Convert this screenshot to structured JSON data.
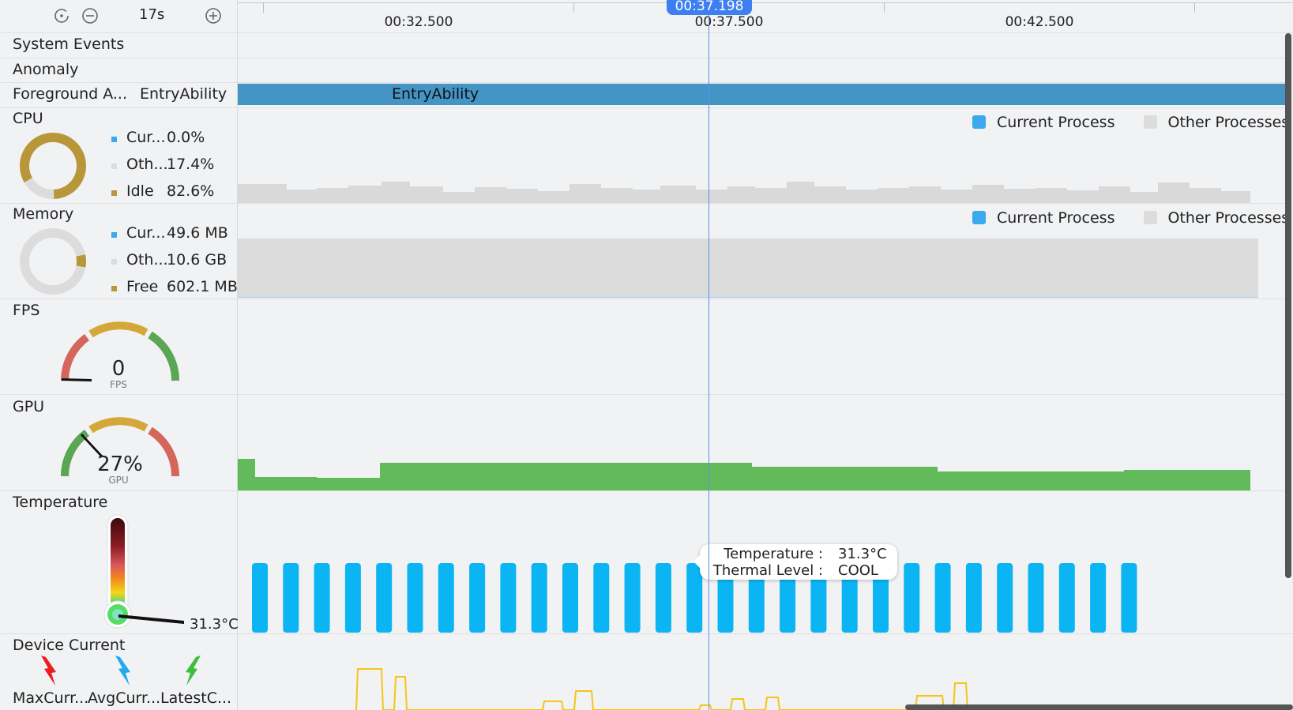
{
  "toolbar": {
    "reset_icon": "reset-icon",
    "zoom_out_icon": "zoom-out-icon",
    "zoom_level": "17s",
    "zoom_in_icon": "zoom-in-icon"
  },
  "timeline": {
    "ticks": [
      "00:32.500",
      "00:37.500",
      "00:42.500"
    ],
    "cursor_time": "00:37.198"
  },
  "rows": {
    "system_events": "System Events",
    "anomaly": "Anomaly",
    "foreground_label": "Foreground A...",
    "foreground_value": "EntryAbility",
    "foreground_bar_label": "EntryAbility"
  },
  "cpu": {
    "title": "CPU",
    "current_label": "Cur...",
    "current_value": "0.0%",
    "other_label": "Oth...",
    "other_value": "17.4%",
    "idle_label": "Idle",
    "idle_value": "82.6%",
    "idle_fraction": 0.826,
    "other_fraction": 0.174,
    "legend_current": "Current Process",
    "legend_other": "Other Processes"
  },
  "memory": {
    "title": "Memory",
    "current_label": "Cur...",
    "current_value": "49.6 MB",
    "other_label": "Oth...",
    "other_value": "10.6 GB",
    "free_label": "Free",
    "free_value": "602.1 MB",
    "legend_current": "Current Process",
    "legend_other": "Other Processes"
  },
  "fps": {
    "title": "FPS",
    "value": "0",
    "unit": "FPS"
  },
  "gpu": {
    "title": "GPU",
    "value": "27%",
    "unit": "GPU",
    "level": 0.27
  },
  "temperature": {
    "title": "Temperature",
    "value": "31.3°C",
    "tooltip_temp_label": "Temperature :",
    "tooltip_temp_value": "31.3°C",
    "tooltip_level_label": "Thermal Level :",
    "tooltip_level_value": "COOL"
  },
  "device_current": {
    "title": "Device Current",
    "max_label": "MaxCurr...",
    "avg_label": "AvgCurr...",
    "latest_label": "LatestC..."
  },
  "colors": {
    "accent": "#3d7ff0",
    "foreground_bar": "#4495c6",
    "cpu_bar": "#d9d9d9",
    "gold": "#b8963a",
    "gpu_bar": "#62ba5a",
    "temp_bar": "#0bb5f3",
    "current_line": "#f5c518",
    "current_process": "#3aa9ee",
    "other_process": "#dcdcdc"
  }
}
